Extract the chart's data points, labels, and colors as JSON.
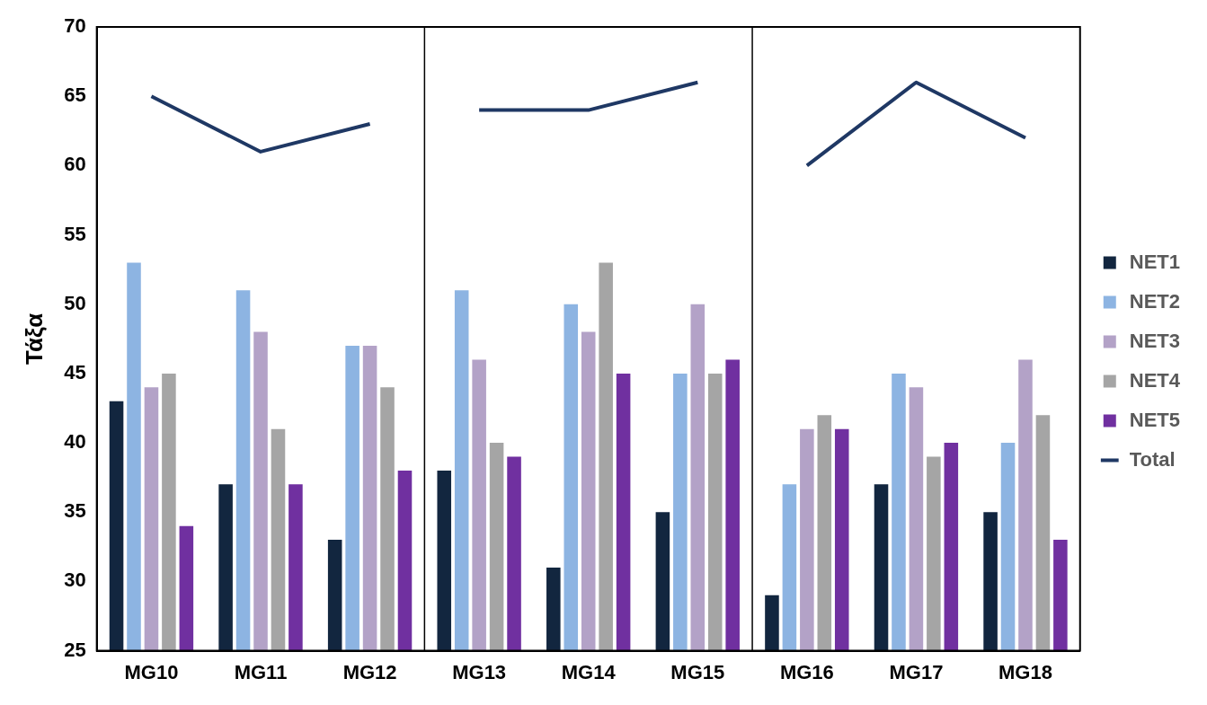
{
  "chart_data": {
    "type": "bar",
    "ylabel": "Τάξα",
    "categories": [
      "MG10",
      "MG11",
      "MG12",
      "MG13",
      "MG14",
      "MG15",
      "MG16",
      "MG17",
      "MG18"
    ],
    "series": [
      {
        "name": "NET1",
        "color": "#12263f",
        "values": [
          43,
          37,
          33,
          38,
          31,
          35,
          29,
          37,
          35
        ]
      },
      {
        "name": "NET2",
        "color": "#8db4e2",
        "values": [
          53,
          51,
          47,
          51,
          50,
          45,
          37,
          45,
          40
        ]
      },
      {
        "name": "NET3",
        "color": "#b3a2c7",
        "values": [
          44,
          48,
          47,
          46,
          48,
          50,
          41,
          44,
          46
        ]
      },
      {
        "name": "NET4",
        "color": "#a5a5a5",
        "values": [
          45,
          41,
          44,
          40,
          53,
          45,
          42,
          39,
          42
        ]
      },
      {
        "name": "NET5",
        "color": "#7030a0",
        "values": [
          34,
          37,
          38,
          39,
          45,
          46,
          41,
          40,
          33
        ]
      },
      {
        "name": "Total",
        "type": "line",
        "color": "#1f3864",
        "values": [
          65,
          61,
          63,
          64,
          64,
          66,
          60,
          66,
          62
        ]
      }
    ],
    "ylim": [
      25,
      70
    ],
    "yticks": [
      25,
      30,
      35,
      40,
      45,
      50,
      55,
      60,
      65,
      70
    ],
    "grid": false,
    "legend": "right",
    "marker": "none"
  }
}
